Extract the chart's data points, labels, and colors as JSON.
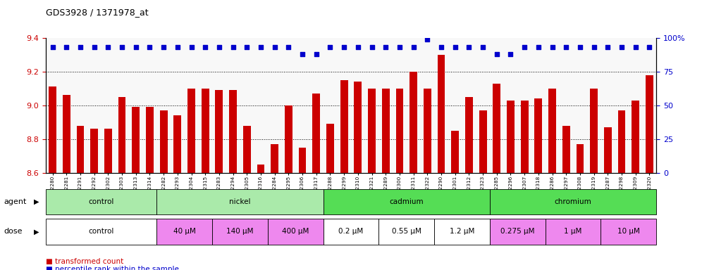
{
  "title": "GDS3928 / 1371978_at",
  "samples": [
    "GSM782280",
    "GSM782281",
    "GSM782291",
    "GSM782292",
    "GSM782302",
    "GSM782303",
    "GSM782313",
    "GSM782314",
    "GSM782282",
    "GSM782293",
    "GSM782304",
    "GSM782315",
    "GSM782283",
    "GSM782294",
    "GSM782305",
    "GSM782316",
    "GSM782284",
    "GSM782295",
    "GSM782306",
    "GSM782317",
    "GSM782288",
    "GSM782299",
    "GSM782310",
    "GSM782321",
    "GSM782289",
    "GSM782300",
    "GSM782311",
    "GSM782322",
    "GSM782290",
    "GSM782301",
    "GSM782312",
    "GSM782323",
    "GSM782285",
    "GSM782296",
    "GSM782307",
    "GSM782318",
    "GSM782286",
    "GSM782297",
    "GSM782308",
    "GSM782319",
    "GSM782287",
    "GSM782298",
    "GSM782309",
    "GSM782320"
  ],
  "bar_values": [
    9.11,
    9.06,
    8.88,
    8.86,
    8.86,
    9.05,
    8.99,
    8.99,
    8.97,
    8.94,
    9.1,
    9.1,
    9.09,
    9.09,
    8.88,
    8.65,
    8.77,
    9.0,
    8.75,
    9.07,
    8.89,
    9.15,
    9.14,
    9.1,
    9.1,
    9.1,
    9.2,
    9.1,
    9.3,
    8.85,
    9.05,
    8.97,
    9.13,
    9.03,
    9.03,
    9.04,
    9.1,
    8.88,
    8.77,
    9.1,
    8.87,
    8.97,
    9.03,
    9.18
  ],
  "percentile_values": [
    93,
    93,
    93,
    93,
    93,
    93,
    93,
    93,
    93,
    93,
    93,
    93,
    93,
    93,
    93,
    93,
    93,
    93,
    88,
    88,
    93,
    93,
    93,
    93,
    93,
    93,
    93,
    99,
    93,
    93,
    93,
    93,
    88,
    88,
    93,
    93,
    93,
    93,
    93,
    93,
    93,
    93,
    93,
    93
  ],
  "ylim_left": [
    8.6,
    9.4
  ],
  "ylim_right": [
    0,
    100
  ],
  "yticks_left": [
    8.6,
    8.8,
    9.0,
    9.2,
    9.4
  ],
  "yticks_right": [
    0,
    25,
    50,
    75,
    100
  ],
  "bar_color": "#cc0000",
  "dot_color": "#0000cc",
  "plot_bg": "#f8f8f8",
  "agent_groups": [
    {
      "label": "control",
      "start": 0,
      "end": 7,
      "color": "#aaeaaa"
    },
    {
      "label": "nickel",
      "start": 8,
      "end": 19,
      "color": "#aaeaaa"
    },
    {
      "label": "cadmium",
      "start": 20,
      "end": 31,
      "color": "#55dd55"
    },
    {
      "label": "chromium",
      "start": 32,
      "end": 43,
      "color": "#55dd55"
    }
  ],
  "dose_groups": [
    {
      "label": "control",
      "start": 0,
      "end": 7,
      "color": "#ffffff"
    },
    {
      "label": "40 μM",
      "start": 8,
      "end": 11,
      "color": "#ee88ee"
    },
    {
      "label": "140 μM",
      "start": 12,
      "end": 15,
      "color": "#ee88ee"
    },
    {
      "label": "400 μM",
      "start": 16,
      "end": 19,
      "color": "#ee88ee"
    },
    {
      "label": "0.2 μM",
      "start": 20,
      "end": 23,
      "color": "#ffffff"
    },
    {
      "label": "0.55 μM",
      "start": 24,
      "end": 27,
      "color": "#ffffff"
    },
    {
      "label": "1.2 μM",
      "start": 28,
      "end": 31,
      "color": "#ffffff"
    },
    {
      "label": "0.275 μM",
      "start": 32,
      "end": 35,
      "color": "#ee88ee"
    },
    {
      "label": "1 μM",
      "start": 36,
      "end": 39,
      "color": "#ee88ee"
    },
    {
      "label": "10 μM",
      "start": 40,
      "end": 43,
      "color": "#ee88ee"
    }
  ]
}
